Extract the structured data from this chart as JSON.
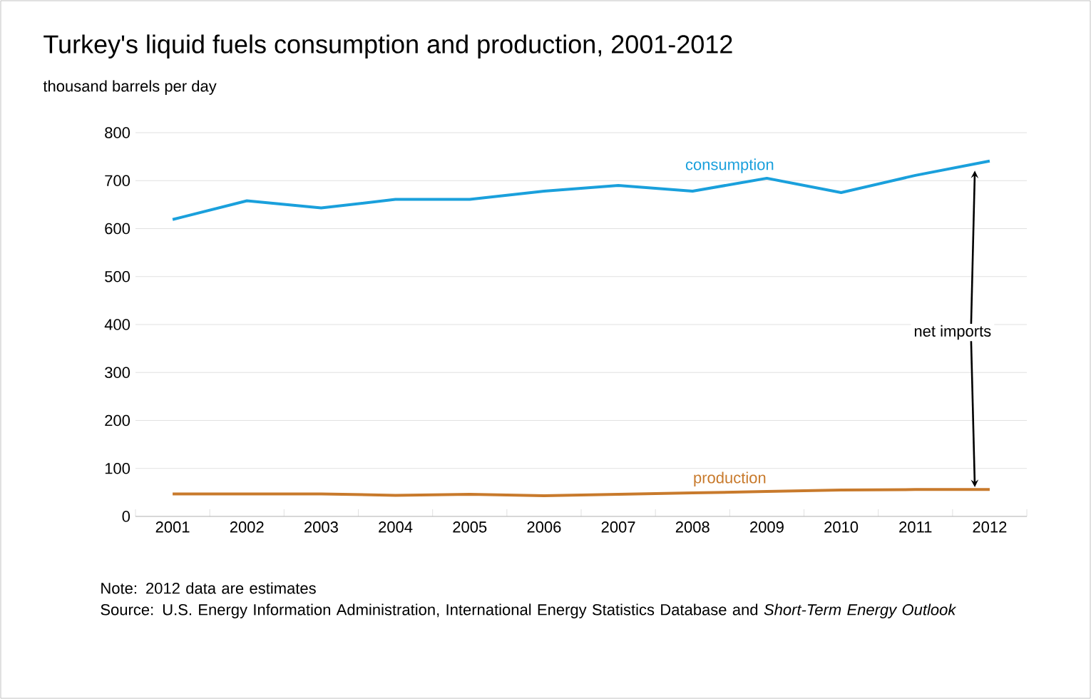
{
  "chart_data": {
    "type": "line",
    "title": "Turkey's liquid fuels consumption and production, 2001-2012",
    "subtitle": "thousand barrels per day",
    "categories": [
      "2001",
      "2002",
      "2003",
      "2004",
      "2005",
      "2006",
      "2007",
      "2008",
      "2009",
      "2010",
      "2011",
      "2012"
    ],
    "series": [
      {
        "name": "consumption",
        "color": "#1aa0dc",
        "values": [
          619,
          658,
          643,
          661,
          661,
          678,
          690,
          678,
          705,
          675,
          711,
          741
        ]
      },
      {
        "name": "production",
        "color": "#c87a2c",
        "values": [
          47,
          47,
          47,
          44,
          46,
          43,
          46,
          49,
          52,
          55,
          56,
          56
        ]
      }
    ],
    "ylim": [
      0,
      800
    ],
    "yticks": [
      0,
      100,
      200,
      300,
      400,
      500,
      600,
      700,
      800
    ],
    "grid": "y",
    "legend": false,
    "marker": "none",
    "line_style": "solid",
    "annotations": [
      "net imports",
      "Note: 2012 data are estimates",
      "Source: U.S. Energy Information Administration, International Energy Statistics Database and *Short-Term Energy Outlook*"
    ]
  }
}
